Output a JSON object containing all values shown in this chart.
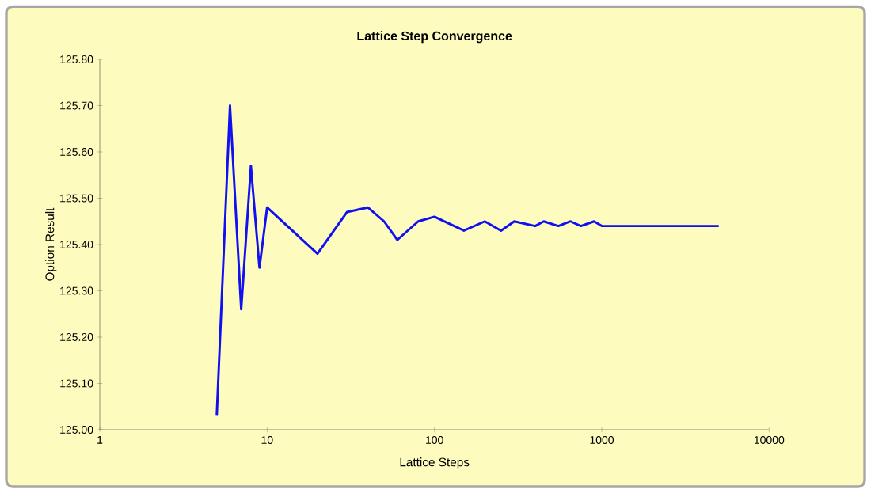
{
  "chart_data": {
    "type": "line",
    "title": "Lattice Step Convergence",
    "xlabel": "Lattice Steps",
    "ylabel": "Option Result",
    "x": [
      5,
      6,
      7,
      8,
      9,
      10,
      20,
      30,
      40,
      50,
      60,
      80,
      100,
      150,
      200,
      250,
      300,
      400,
      450,
      550,
      650,
      750,
      900,
      1000,
      1500,
      2000,
      3000,
      5000
    ],
    "series": [
      {
        "color": "#1010f0",
        "values": [
          125.03,
          125.7,
          125.26,
          125.57,
          125.35,
          125.48,
          125.38,
          125.47,
          125.48,
          125.45,
          125.41,
          125.45,
          125.46,
          125.43,
          125.45,
          125.43,
          125.45,
          125.44,
          125.45,
          125.44,
          125.45,
          125.44,
          125.45,
          125.44,
          125.44,
          125.44,
          125.44,
          125.44
        ]
      }
    ],
    "log": "x",
    "xlim": [
      1,
      10000
    ],
    "xticks": [
      1,
      10,
      100,
      1000,
      10000
    ],
    "ylim": [
      125.0,
      125.8
    ],
    "yticks": [
      {
        "value": 125.0,
        "label": "125.00"
      },
      {
        "value": 125.1,
        "label": "125.10"
      },
      {
        "value": 125.2,
        "label": "125.20"
      },
      {
        "value": 125.3,
        "label": "125.30"
      },
      {
        "value": 125.4,
        "label": "125.40"
      },
      {
        "value": 125.5,
        "label": "125.50"
      },
      {
        "value": 125.6,
        "label": "125.60"
      },
      {
        "value": 125.7,
        "label": "125.70"
      },
      {
        "value": 125.8,
        "label": "125.80"
      }
    ],
    "grid": false,
    "marker": "none",
    "line_style": "solid"
  }
}
